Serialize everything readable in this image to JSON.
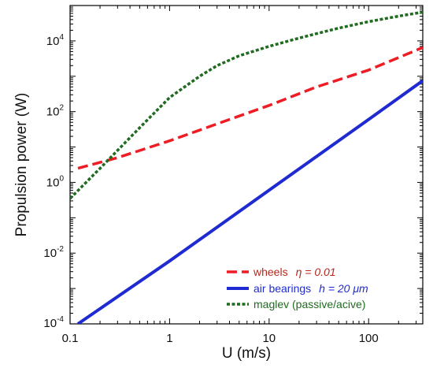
{
  "chart_data": {
    "type": "line",
    "xlabel": "U (m/s)",
    "ylabel": "Propulsion power  (W)",
    "xscale": "log",
    "yscale": "log",
    "xlim": [
      0.1,
      350
    ],
    "ylim": [
      0.0001,
      100000
    ],
    "grid": false,
    "legend_placement": "bottom-right",
    "x_tick_labels": [
      {
        "value": 0.1,
        "label": "0.1"
      },
      {
        "value": 1,
        "label": "1"
      },
      {
        "value": 10,
        "label": "10"
      },
      {
        "value": 100,
        "label": "100"
      }
    ],
    "y_tick_labels": [
      {
        "value": 0.0001,
        "base": "10",
        "exp": "-4"
      },
      {
        "value": 0.01,
        "base": "10",
        "exp": "-2"
      },
      {
        "value": 1,
        "base": "10",
        "exp": "0"
      },
      {
        "value": 100,
        "base": "10",
        "exp": "2"
      },
      {
        "value": 10000,
        "base": "10",
        "exp": "4"
      }
    ],
    "series": [
      {
        "name": "wheels",
        "legend_extra": "η = 0.01",
        "color": "#ee1c24",
        "style": "dashed",
        "x": [
          0.12,
          0.3,
          1,
          3,
          10,
          30,
          100,
          350
        ],
        "y": [
          2.5,
          5,
          15,
          45,
          150,
          500,
          1500,
          6500
        ]
      },
      {
        "name": "air bearings",
        "legend_extra": "h = 20  μm",
        "color": "#1f2bd1",
        "style": "solid",
        "x": [
          0.12,
          1,
          10,
          100,
          350
        ],
        "y": [
          0.0001,
          0.006,
          0.6,
          60,
          750
        ]
      },
      {
        "name": "maglev (passive/acive)",
        "color": "#1f6b1f",
        "style": "dotted",
        "x": [
          0.1,
          0.2,
          0.3,
          0.5,
          1,
          2,
          3,
          5,
          10,
          20,
          30,
          50,
          100,
          200,
          350
        ],
        "y": [
          0.35,
          2.5,
          8,
          35,
          250,
          1000,
          2000,
          3800,
          7000,
          12000,
          16000,
          23000,
          35000,
          50000,
          65000
        ]
      }
    ]
  }
}
